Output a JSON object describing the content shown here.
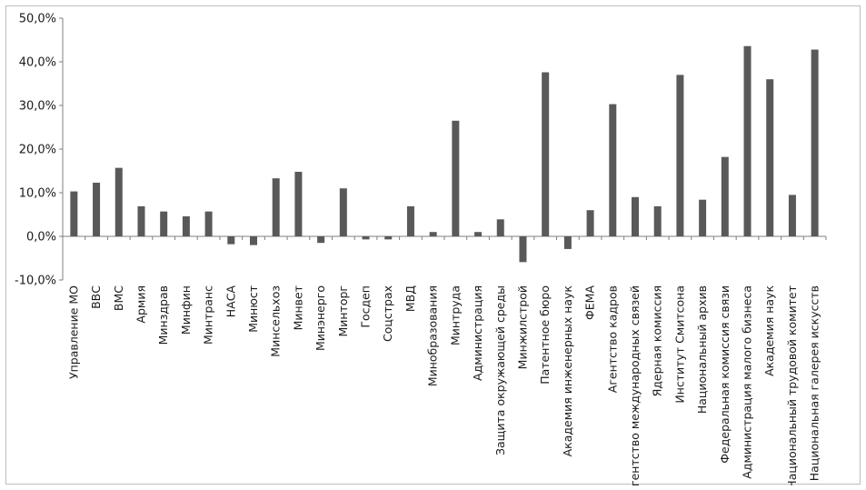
{
  "chart_data": {
    "type": "bar",
    "title": "",
    "xlabel": "",
    "ylabel": "",
    "ylim": [
      -10,
      50
    ],
    "y_ticks": [
      "50,0%",
      "40,0%",
      "30,0%",
      "20,0%",
      "10,0%",
      "0,0%",
      "-10,0%"
    ],
    "y_tick_values": [
      50,
      40,
      30,
      20,
      10,
      0,
      -10
    ],
    "grid": false,
    "legend": "none",
    "bar_color": "#595959",
    "categories": [
      "Управление МО",
      "ВВС",
      "ВМС",
      "Армия",
      "Минздрав",
      "Минфин",
      "Минтранс",
      "НАСА",
      "Минюст",
      "Минсельхоз",
      "Минвет",
      "Минэнерго",
      "Минторг",
      "Госдеп",
      "Соцстрах",
      "МВД",
      "Минобразования",
      "Минтруда",
      "Администрация",
      "Защита окружающей среды",
      "Минжилстрой",
      "Патентное бюро",
      "Академия инженерных наук",
      "ФЕМА",
      "Агентство кадров",
      "Агентство международных связей",
      "Ядерная комиссия",
      "Институт Смитсона",
      "Национальный архив",
      "Федеральная комиссия связи",
      "Администрация малого бизнеса",
      "Академия наук",
      "Национальный трудовой комитет",
      "Национальная галерея искусств"
    ],
    "values": [
      10.3,
      12.3,
      15.7,
      6.9,
      5.7,
      4.6,
      5.7,
      -1.8,
      -2.0,
      13.3,
      14.8,
      -1.5,
      11.0,
      -0.7,
      -0.7,
      6.9,
      1.0,
      26.5,
      1.0,
      3.9,
      -5.9,
      37.6,
      -2.9,
      6.0,
      30.3,
      9.0,
      6.9,
      37.0,
      8.4,
      18.2,
      43.6,
      36.0,
      9.5,
      42.8
    ]
  }
}
